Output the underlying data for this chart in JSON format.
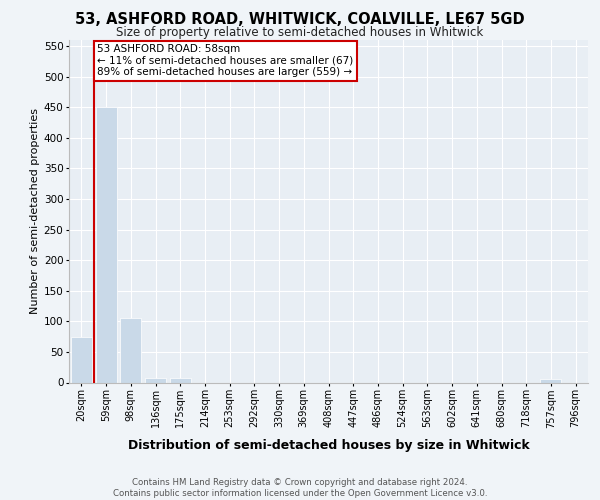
{
  "title_line1": "53, ASHFORD ROAD, WHITWICK, COALVILLE, LE67 5GD",
  "title_line2": "Size of property relative to semi-detached houses in Whitwick",
  "xlabel": "Distribution of semi-detached houses by size in Whitwick",
  "ylabel": "Number of semi-detached properties",
  "footer": "Contains HM Land Registry data © Crown copyright and database right 2024.\nContains public sector information licensed under the Open Government Licence v3.0.",
  "bin_labels": [
    "20sqm",
    "59sqm",
    "98sqm",
    "136sqm",
    "175sqm",
    "214sqm",
    "253sqm",
    "292sqm",
    "330sqm",
    "369sqm",
    "408sqm",
    "447sqm",
    "486sqm",
    "524sqm",
    "563sqm",
    "602sqm",
    "641sqm",
    "680sqm",
    "718sqm",
    "757sqm",
    "796sqm"
  ],
  "bar_values": [
    75,
    450,
    105,
    8,
    8,
    0,
    0,
    0,
    0,
    0,
    0,
    0,
    0,
    0,
    0,
    0,
    0,
    0,
    0,
    5,
    0
  ],
  "bar_color": "#c9d9e8",
  "property_line_bin_index": 1,
  "annotation_text": "53 ASHFORD ROAD: 58sqm\n← 11% of semi-detached houses are smaller (67)\n89% of semi-detached houses are larger (559) →",
  "annotation_box_color": "#ffffff",
  "annotation_box_edge_color": "#cc0000",
  "vline_color": "#cc0000",
  "ylim": [
    0,
    560
  ],
  "yticks": [
    0,
    50,
    100,
    150,
    200,
    250,
    300,
    350,
    400,
    450,
    500,
    550
  ],
  "background_color": "#f0f4f8",
  "plot_bg_color": "#e8eef4",
  "title1_fontsize": 10.5,
  "title2_fontsize": 8.5,
  "ylabel_fontsize": 8,
  "xlabel_fontsize": 9,
  "tick_fontsize": 7,
  "footer_fontsize": 6.2
}
